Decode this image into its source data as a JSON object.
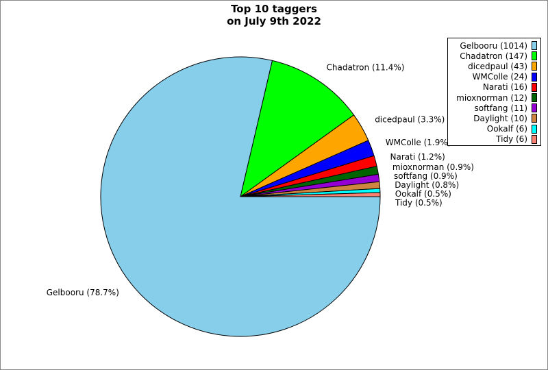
{
  "chart_data": {
    "type": "pie",
    "title_lines": [
      "Top 10 taggers",
      "on July 9th 2022"
    ],
    "legend_placement": "top-right",
    "slices": [
      {
        "name": "Gelbooru",
        "value": 1014,
        "legend": "Gelbooru (1014)",
        "label": "Gelbooru (78.7%)",
        "color": "#87ceeb"
      },
      {
        "name": "Chadatron",
        "value": 147,
        "legend": "Chadatron (147)",
        "label": "Chadatron (11.4%)",
        "color": "#00ff00"
      },
      {
        "name": "dicedpaul",
        "value": 43,
        "legend": "dicedpaul (43)",
        "label": "dicedpaul (3.3%)",
        "color": "#ffa500"
      },
      {
        "name": "WMColle",
        "value": 24,
        "legend": "WMColle (24)",
        "label": "WMColle (1.9%)",
        "color": "#0000ff"
      },
      {
        "name": "Narati",
        "value": 16,
        "legend": "Narati (16)",
        "label": "Narati (1.2%)",
        "color": "#ff0000"
      },
      {
        "name": "mioxnorman",
        "value": 12,
        "legend": "mioxnorman (12)",
        "label": "mioxnorman (0.9%)",
        "color": "#006400"
      },
      {
        "name": "softfang",
        "value": 11,
        "legend": "softfang (11)",
        "label": "softfang (0.9%)",
        "color": "#9400d3"
      },
      {
        "name": "Daylight",
        "value": 10,
        "legend": "Daylight (10)",
        "label": "Daylight (0.8%)",
        "color": "#cd853f"
      },
      {
        "name": "Ookalf",
        "value": 6,
        "legend": "Ookalf (6)",
        "label": "Ookalf (0.5%)",
        "color": "#00ffff"
      },
      {
        "name": "Tidy",
        "value": 6,
        "legend": "Tidy (6)",
        "label": "Tidy (0.5%)",
        "color": "#fa8072"
      }
    ]
  }
}
